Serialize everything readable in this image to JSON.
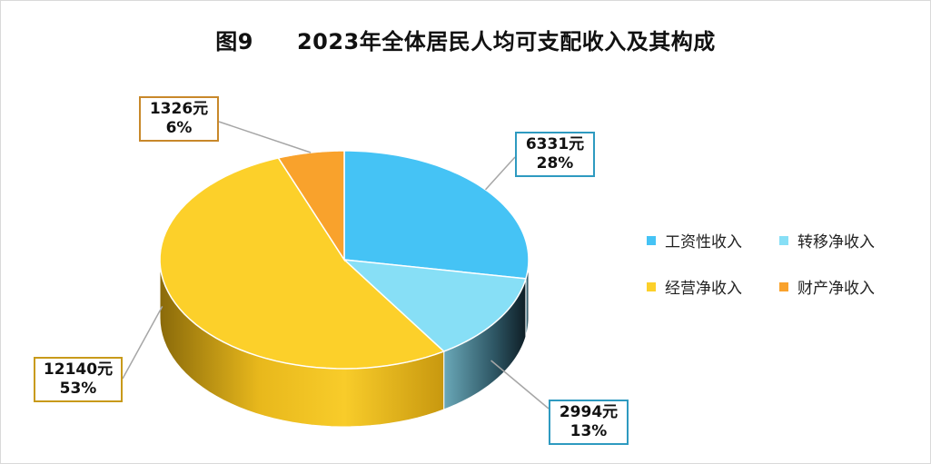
{
  "title_prefix": "图9",
  "title": "2023年全体居民人均可支配收入及其构成",
  "chart_data": {
    "type": "pie",
    "title": "2023年全体居民人均可支配收入及其构成",
    "legend_position": "right",
    "slices": [
      {
        "name": "工资性收入",
        "value": 6331,
        "percent": 28,
        "value_label": "6331元",
        "percent_label": "28%",
        "color": "#45c3f5"
      },
      {
        "name": "转移净收入",
        "value": 2994,
        "percent": 13,
        "value_label": "2994元",
        "percent_label": "13%",
        "color": "#87dff6"
      },
      {
        "name": "经营净收入",
        "value": 12140,
        "percent": 53,
        "value_label": "12140元",
        "percent_label": "53%",
        "color": "#fcd02a"
      },
      {
        "name": "财产净收入",
        "value": 1326,
        "percent": 6,
        "value_label": "1326元",
        "percent_label": "6%",
        "color": "#f9a22c"
      }
    ]
  }
}
